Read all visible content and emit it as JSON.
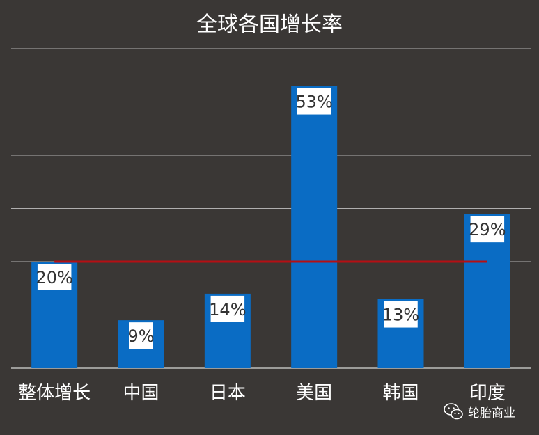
{
  "chart_data": {
    "type": "bar",
    "title": "全球各国增长率",
    "categories": [
      "整体增长",
      "中国",
      "日本",
      "美国",
      "韩国",
      "印度"
    ],
    "values": [
      20,
      9,
      14,
      53,
      13,
      29
    ],
    "data_labels": [
      "20%",
      "9%",
      "14%",
      "53%",
      "13%",
      "29%"
    ],
    "reference_line": {
      "value": 20
    },
    "ylim": [
      0,
      60
    ],
    "grid": true,
    "colors": {
      "bar": "#0a6cc4",
      "reference_line": "#b50f14",
      "background": "#3a3735",
      "gridline": "#d8d8d8"
    }
  },
  "watermark": {
    "text": "轮胎商业",
    "icon": "wechat-icon"
  }
}
